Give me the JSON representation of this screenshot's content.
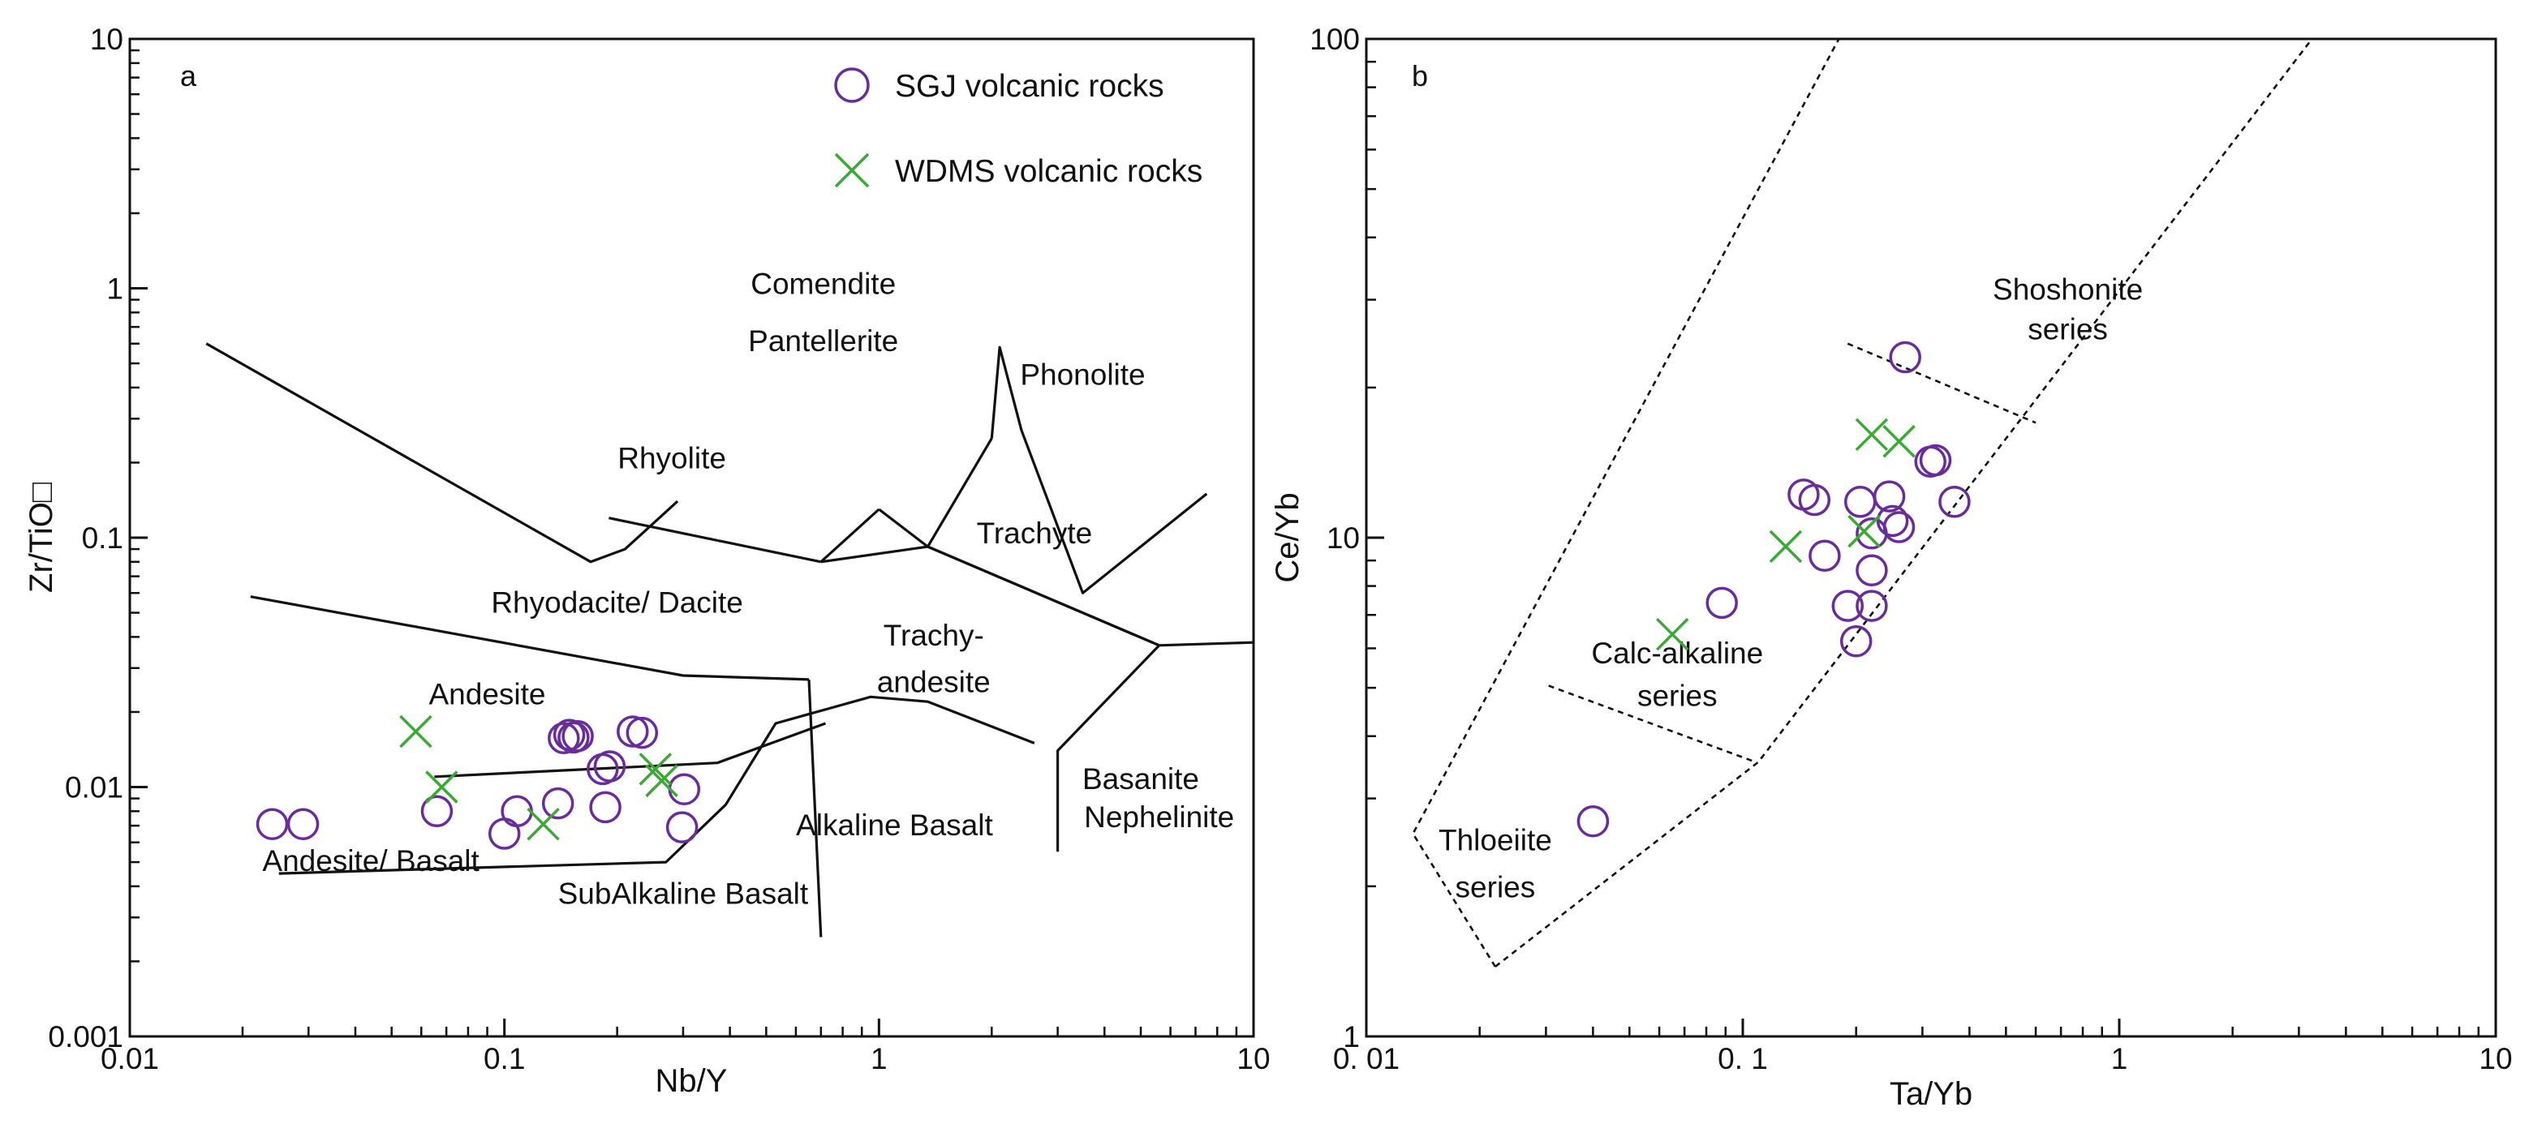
{
  "chart_data": [
    {
      "type": "scatter",
      "panel_label": "a",
      "xlabel": "Nb/Y",
      "ylabel": "Zr/TiO□",
      "xscale": "log",
      "yscale": "log",
      "xlim": [
        0.01,
        10
      ],
      "ylim": [
        0.001,
        10
      ],
      "xticks": [
        0.01,
        0.1,
        1,
        10
      ],
      "xtick_labels": [
        "0.01",
        "0.1",
        "1",
        "10"
      ],
      "yticks": [
        0.001,
        0.01,
        0.1,
        1,
        10
      ],
      "ytick_labels": [
        "0.001",
        "0.01",
        "0.1",
        "1",
        "10"
      ],
      "legend_position": "top-right",
      "series": [
        {
          "name": "SGJ volcanic rocks",
          "marker": "circle",
          "color": "#6a2c9a",
          "points": [
            [
              0.024,
              0.0071
            ],
            [
              0.029,
              0.0071
            ],
            [
              0.066,
              0.008
            ],
            [
              0.1,
              0.0065
            ],
            [
              0.108,
              0.008
            ],
            [
              0.139,
              0.0086
            ],
            [
              0.144,
              0.0157
            ],
            [
              0.149,
              0.0162
            ],
            [
              0.153,
              0.0158
            ],
            [
              0.157,
              0.016
            ],
            [
              0.183,
              0.0118
            ],
            [
              0.191,
              0.0121
            ],
            [
              0.186,
              0.0083
            ],
            [
              0.22,
              0.0167
            ],
            [
              0.233,
              0.0165
            ],
            [
              0.302,
              0.0098
            ],
            [
              0.298,
              0.0069
            ]
          ]
        },
        {
          "name": "WDMS volcanic rocks",
          "marker": "x",
          "color": "#3aaa35",
          "points": [
            [
              0.058,
              0.0167
            ],
            [
              0.068,
              0.01
            ],
            [
              0.127,
              0.0071
            ],
            [
              0.253,
              0.0118
            ],
            [
              0.263,
              0.0106
            ]
          ]
        }
      ],
      "field_labels": [
        {
          "text": "Comendite",
          "x": 0.71,
          "y": 0.95
        },
        {
          "text": "Pantellerite",
          "x": 0.71,
          "y": 0.56
        },
        {
          "text": "Phonolite",
          "x": 3.5,
          "y": 0.41
        },
        {
          "text": "Rhyolite",
          "x": 0.28,
          "y": 0.19
        },
        {
          "text": "Trachyte",
          "x": 2.6,
          "y": 0.095
        },
        {
          "text": "Rhyodacite/ Dacite",
          "x": 0.2,
          "y": 0.05
        },
        {
          "text": "Trachy-",
          "x": 1.4,
          "y": 0.037
        },
        {
          "text": "andesite",
          "x": 1.4,
          "y": 0.024
        },
        {
          "text": "Andesite",
          "x": 0.09,
          "y": 0.0215
        },
        {
          "text": "Basanite",
          "x": 5.0,
          "y": 0.0098
        },
        {
          "text": "Nephelinite",
          "x": 5.6,
          "y": 0.0069
        },
        {
          "text": "Alkaline Basalt",
          "x": 1.1,
          "y": 0.0064
        },
        {
          "text": "Andesite/ Basalt",
          "x": 0.044,
          "y": 0.0046
        },
        {
          "text": "SubAlkaline Basalt",
          "x": 0.3,
          "y": 0.0034
        }
      ],
      "field_boundaries": [
        [
          [
            0.016,
            0.6
          ],
          [
            0.17,
            0.08
          ],
          [
            0.21,
            0.09
          ],
          [
            0.29,
            0.14
          ]
        ],
        [
          [
            0.19,
            0.12
          ],
          [
            0.7,
            0.08
          ]
        ],
        [
          [
            0.021,
            0.058
          ],
          [
            0.3,
            0.028
          ],
          [
            0.65,
            0.027
          ]
        ],
        [
          [
            0.65,
            0.027
          ],
          [
            0.7,
            0.0025
          ]
        ],
        [
          [
            0.7,
            0.08
          ],
          [
            1.0,
            0.13
          ]
        ],
        [
          [
            1.0,
            0.13
          ],
          [
            1.35,
            0.092
          ]
        ],
        [
          [
            1.35,
            0.092
          ],
          [
            2.0,
            0.25
          ]
        ],
        [
          [
            1.35,
            0.092
          ],
          [
            5.6,
            0.037
          ]
        ],
        [
          [
            5.6,
            0.037
          ],
          [
            10,
            0.038
          ]
        ],
        [
          [
            0.7,
            0.08
          ],
          [
            1.35,
            0.092
          ]
        ],
        [
          [
            1.35,
            0.092
          ],
          [
            5.6,
            0.037
          ]
        ],
        [
          [
            2.0,
            0.25
          ],
          [
            2.1,
            0.58
          ],
          [
            2.4,
            0.27
          ],
          [
            3.5,
            0.06
          ],
          [
            7.5,
            0.15
          ]
        ],
        [
          [
            0.025,
            0.0045
          ],
          [
            0.27,
            0.005
          ],
          [
            0.39,
            0.0085
          ],
          [
            0.53,
            0.018
          ],
          [
            0.95,
            0.023
          ],
          [
            1.35,
            0.022
          ],
          [
            2.6,
            0.015
          ]
        ],
        [
          [
            5.6,
            0.037
          ],
          [
            3.0,
            0.014
          ],
          [
            3.0,
            0.0055
          ]
        ],
        [
          [
            0.065,
            0.011
          ],
          [
            0.37,
            0.0125
          ],
          [
            0.72,
            0.018
          ]
        ]
      ]
    },
    {
      "type": "scatter",
      "panel_label": "b",
      "xlabel": "Ta/Yb",
      "ylabel": "Ce/Yb",
      "xscale": "log",
      "yscale": "log",
      "xlim": [
        0.01,
        10
      ],
      "ylim": [
        1,
        100
      ],
      "xticks": [
        0.01,
        0.1,
        1,
        10
      ],
      "xtick_labels": [
        "0. 01",
        "0. 1",
        "1",
        "10"
      ],
      "yticks": [
        1,
        10,
        100
      ],
      "ytick_labels": [
        "1",
        "10",
        "100"
      ],
      "series": [
        {
          "name": "SGJ volcanic rocks",
          "marker": "circle",
          "color": "#6a2c9a",
          "points": [
            [
              0.04,
              2.7
            ],
            [
              0.088,
              7.4
            ],
            [
              0.145,
              12.2
            ],
            [
              0.155,
              11.9
            ],
            [
              0.165,
              9.2
            ],
            [
              0.19,
              7.3
            ],
            [
              0.2,
              6.2
            ],
            [
              0.205,
              11.8
            ],
            [
              0.22,
              10.2
            ],
            [
              0.22,
              8.6
            ],
            [
              0.22,
              7.3
            ],
            [
              0.245,
              12.1
            ],
            [
              0.25,
              10.8
            ],
            [
              0.26,
              10.5
            ],
            [
              0.315,
              14.2
            ],
            [
              0.325,
              14.3
            ],
            [
              0.365,
              11.8
            ],
            [
              0.27,
              23
            ]
          ]
        },
        {
          "name": "WDMS volcanic rocks",
          "marker": "x",
          "color": "#3aaa35",
          "points": [
            [
              0.065,
              6.4
            ],
            [
              0.13,
              9.6
            ],
            [
              0.21,
              10.3
            ],
            [
              0.22,
              16.1
            ],
            [
              0.26,
              15.6
            ]
          ]
        }
      ],
      "field_labels": [
        {
          "text": "Shoshonite",
          "x": 0.73,
          "y": 30
        },
        {
          "text": "series",
          "x": 0.73,
          "y": 25
        },
        {
          "text": "Calc-alkaline",
          "x": 0.067,
          "y": 5.6
        },
        {
          "text": "series",
          "x": 0.067,
          "y": 4.6
        },
        {
          "text": "Thloeiite",
          "x": 0.022,
          "y": 2.36
        },
        {
          "text": "series",
          "x": 0.022,
          "y": 1.9
        }
      ],
      "field_boundaries": [
        [
          [
            0.022,
            1.38
          ],
          [
            0.0133,
            2.55
          ],
          [
            0.18,
            100
          ]
        ],
        [
          [
            0.022,
            1.38
          ],
          [
            0.11,
            3.55
          ],
          [
            3.25,
            100
          ]
        ],
        [
          [
            0.0305,
            5.05
          ],
          [
            0.108,
            3.55
          ]
        ],
        [
          [
            0.19,
            24.5
          ],
          [
            0.6,
            17
          ]
        ]
      ]
    }
  ],
  "legend": [
    {
      "label": "SGJ volcanic rocks",
      "marker": "circle"
    },
    {
      "label": "WDMS volcanic rocks",
      "marker": "x"
    }
  ]
}
